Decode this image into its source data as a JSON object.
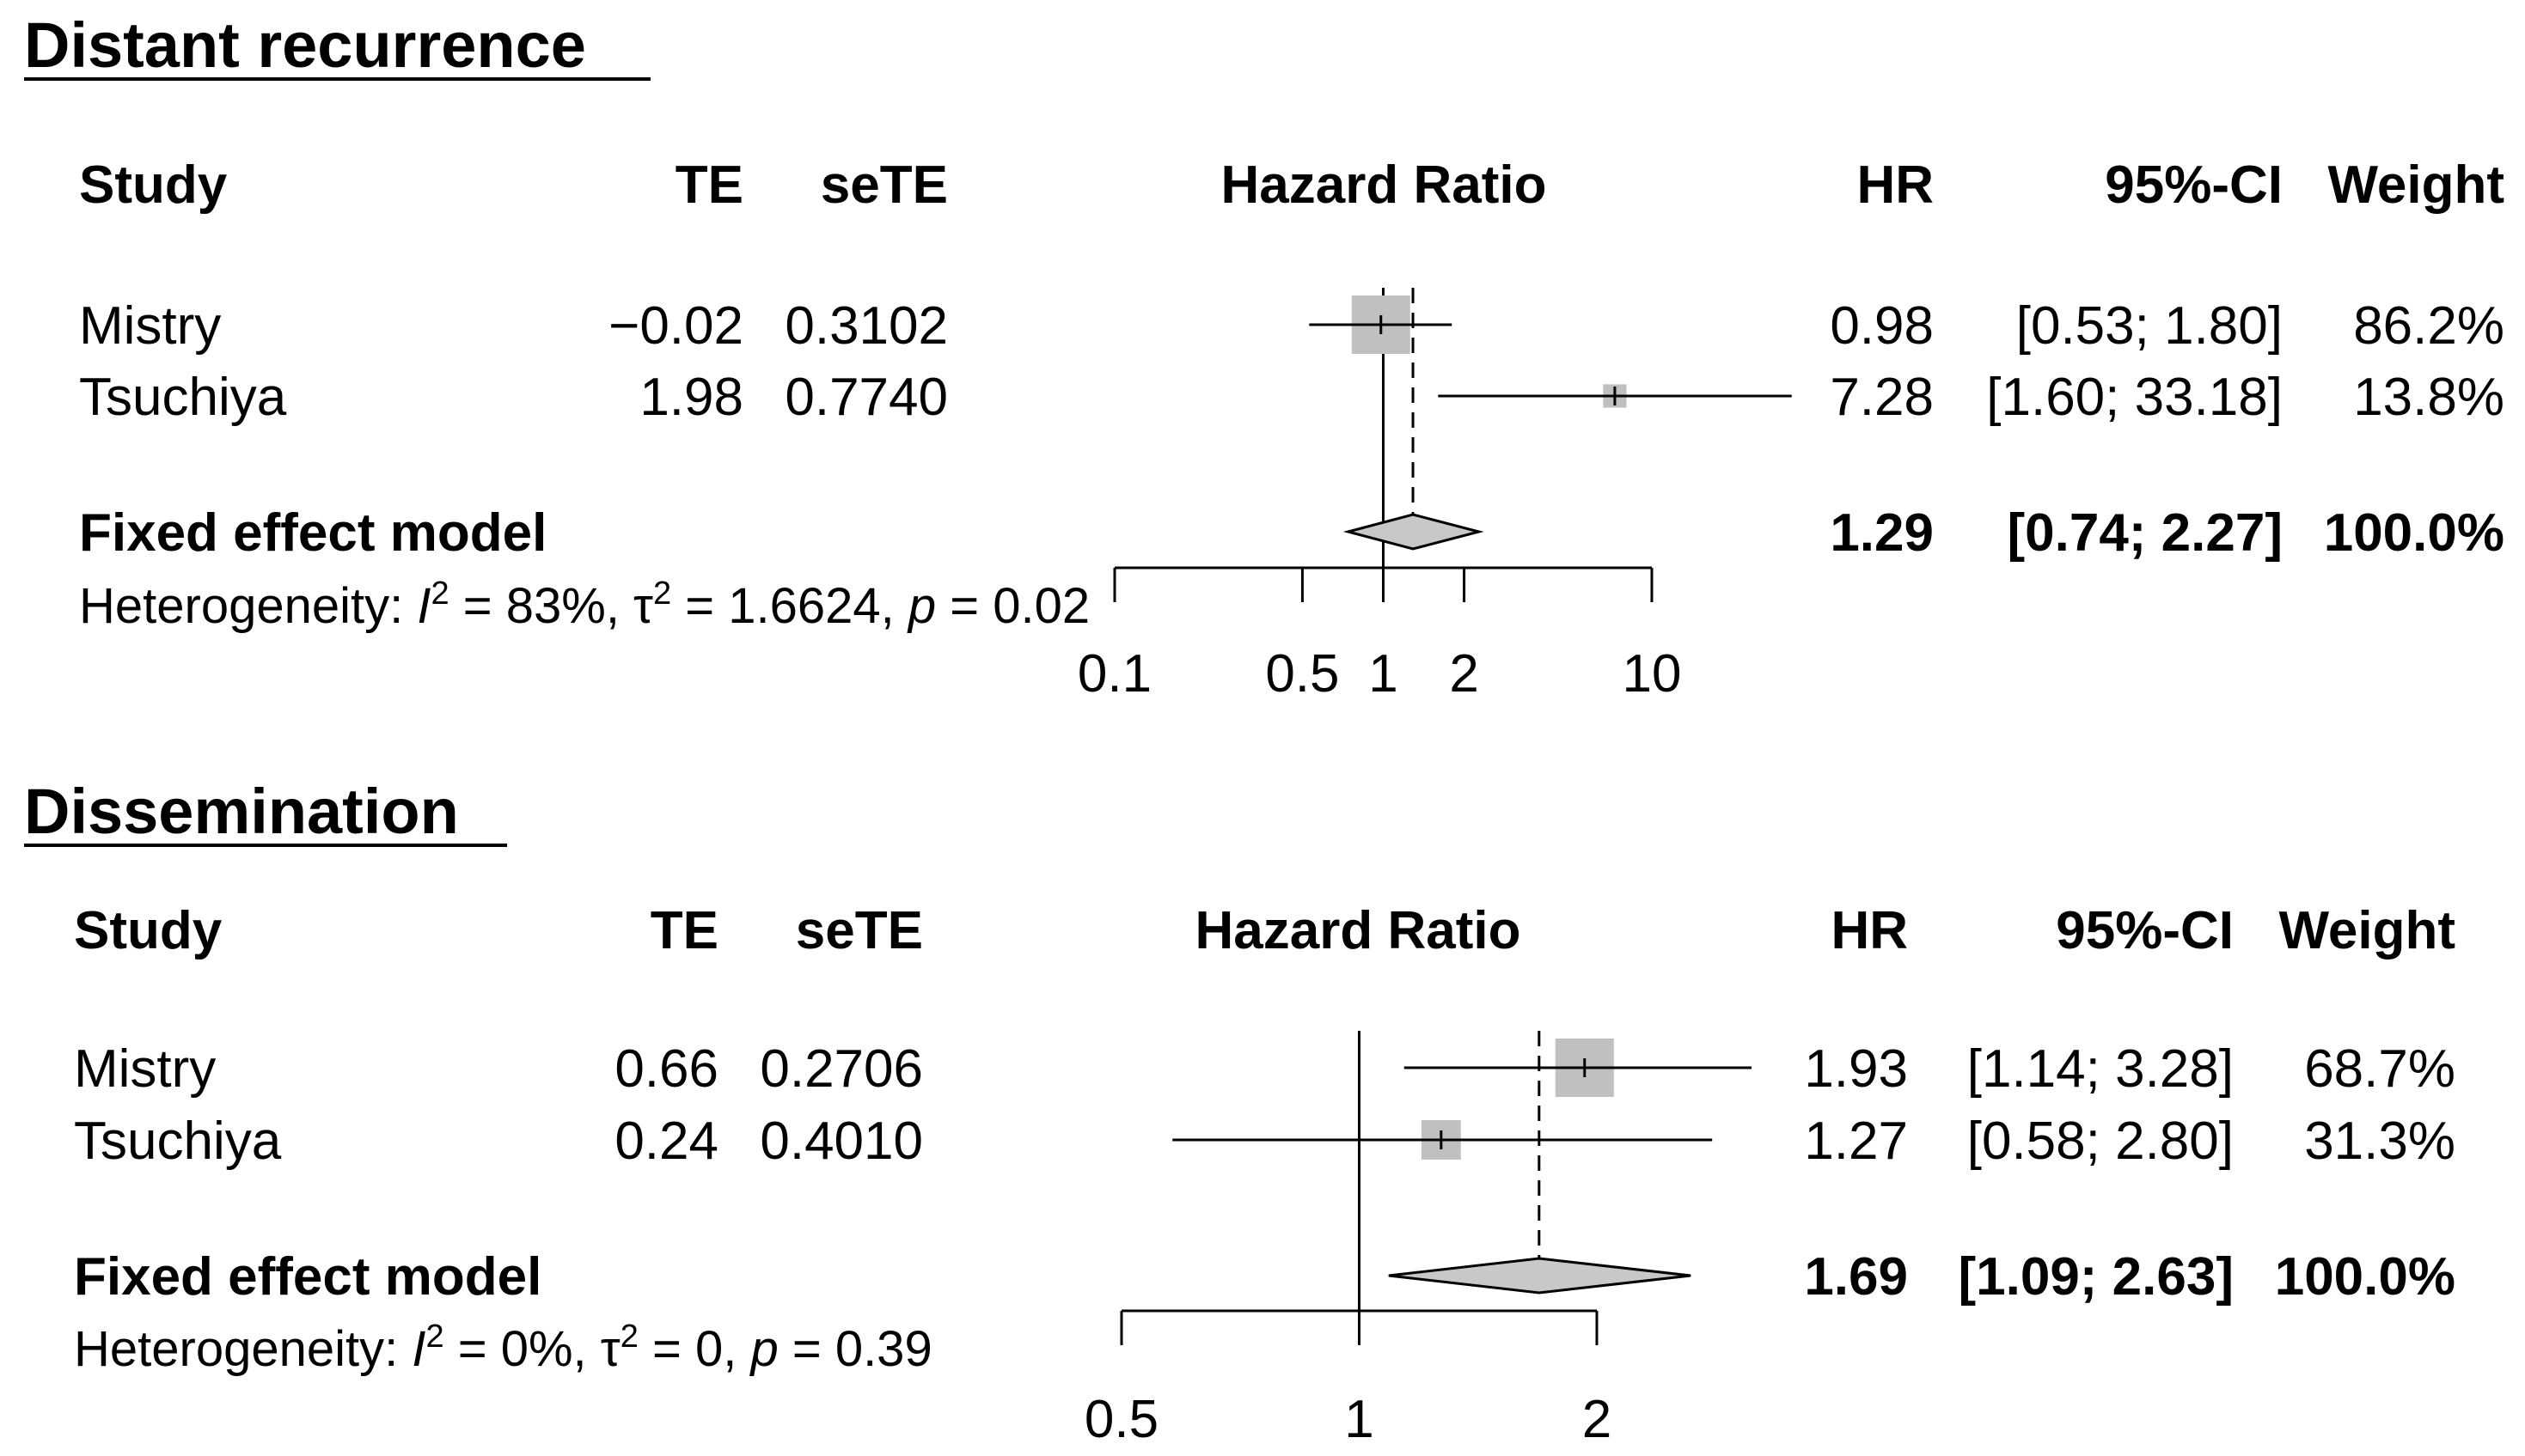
{
  "chart_data": [
    {
      "type": "forest",
      "title": "Distant recurrence",
      "scale": "log",
      "xlabel": "Hazard Ratio",
      "xlim": [
        0.1,
        10
      ],
      "ticks": [
        0.1,
        0.5,
        1,
        2,
        10
      ],
      "tick_labels": [
        "0.1",
        "0.5",
        "1",
        "2",
        "10"
      ],
      "columns": {
        "study": "Study",
        "te": "TE",
        "sete": "seTE",
        "plot": "Hazard Ratio",
        "hr": "HR",
        "ci": "95%-CI",
        "weight": "Weight"
      },
      "studies": [
        {
          "name": "Mistry",
          "te": "−0.02",
          "sete": "0.3102",
          "hr": 0.98,
          "lower": 0.53,
          "upper": 1.8,
          "hr_text": "0.98",
          "ci_text": "[0.53;  1.80]",
          "weight": 86.2,
          "weight_text": "86.2%"
        },
        {
          "name": "Tsuchiya",
          "te": "1.98",
          "sete": "0.7740",
          "hr": 7.28,
          "lower": 1.6,
          "upper": 33.18,
          "hr_text": "7.28",
          "ci_text": "[1.60; 33.18]",
          "weight": 13.8,
          "weight_text": "13.8%"
        }
      ],
      "pooled": {
        "name": "Fixed effect model",
        "hr": 1.29,
        "lower": 0.74,
        "upper": 2.27,
        "hr_text": "1.29",
        "ci_text": "[0.74;  2.27]",
        "weight_text": "100.0%"
      },
      "heterogeneity": {
        "prefix": "Heterogeneity: ",
        "i2": "83%",
        "tau2": "1.6624",
        "p": "0.02"
      }
    },
    {
      "type": "forest",
      "title": "Dissemination",
      "scale": "log",
      "xlabel": "Hazard Ratio",
      "xlim": [
        0.5,
        2
      ],
      "ticks": [
        0.5,
        1,
        2
      ],
      "tick_labels": [
        "0.5",
        "1",
        "2"
      ],
      "columns": {
        "study": "Study",
        "te": "TE",
        "sete": "seTE",
        "plot": "Hazard Ratio",
        "hr": "HR",
        "ci": "95%-CI",
        "weight": "Weight"
      },
      "studies": [
        {
          "name": "Mistry",
          "te": "0.66",
          "sete": "0.2706",
          "hr": 1.93,
          "lower": 1.14,
          "upper": 3.28,
          "hr_text": "1.93",
          "ci_text": "[1.14; 3.28]",
          "weight": 68.7,
          "weight_text": "68.7%"
        },
        {
          "name": "Tsuchiya",
          "te": "0.24",
          "sete": "0.4010",
          "hr": 1.27,
          "lower": 0.58,
          "upper": 2.8,
          "hr_text": "1.27",
          "ci_text": "[0.58; 2.80]",
          "weight": 31.3,
          "weight_text": "31.3%"
        }
      ],
      "pooled": {
        "name": "Fixed effect model",
        "hr": 1.69,
        "lower": 1.09,
        "upper": 2.63,
        "hr_text": "1.69",
        "ci_text": "[1.09; 2.63]",
        "weight_text": "100.0%"
      },
      "heterogeneity": {
        "prefix": "Heterogeneity: ",
        "i2": "0%",
        "tau2": "0",
        "p": "0.39"
      }
    }
  ]
}
